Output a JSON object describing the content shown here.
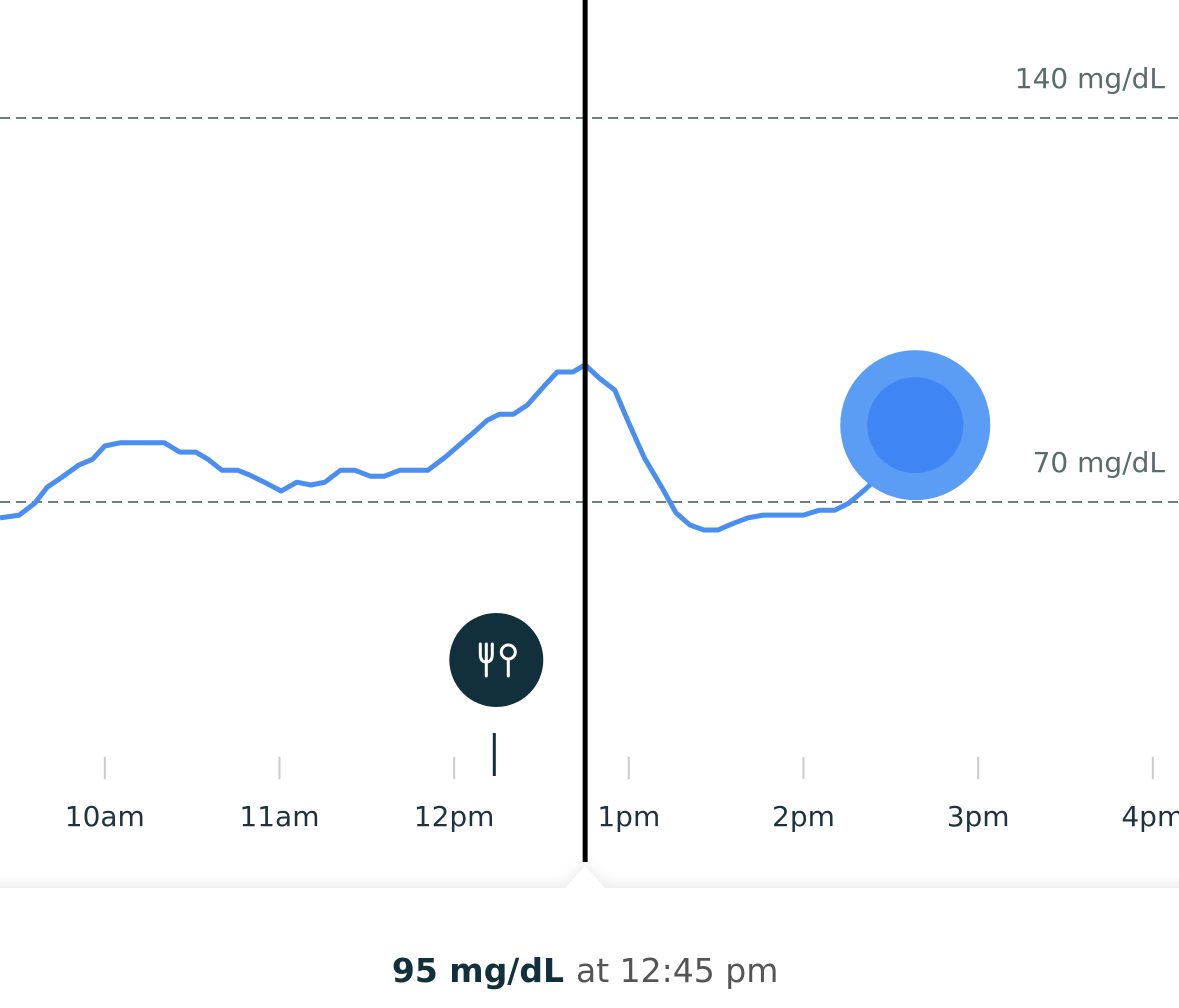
{
  "chart_data": {
    "type": "line",
    "x": [
      9.4,
      9.51,
      9.6,
      9.67,
      9.75,
      9.85,
      9.93,
      10.0,
      10.09,
      10.34,
      10.43,
      10.52,
      10.59,
      10.67,
      10.76,
      10.83,
      10.92,
      11.01,
      11.1,
      11.18,
      11.26,
      11.35,
      11.43,
      11.52,
      11.6,
      11.69,
      11.85,
      11.95,
      12.03,
      12.12,
      12.19,
      12.26,
      12.34,
      12.42,
      12.52,
      12.59,
      12.68,
      12.75,
      12.83,
      12.92,
      13.0,
      13.09,
      13.19,
      13.27,
      13.35,
      13.43,
      13.51,
      13.59,
      13.68,
      13.77,
      14.0,
      14.09,
      14.18,
      14.26,
      14.35,
      14.44,
      14.55,
      14.64
    ],
    "series": [
      {
        "color": "#4a8ef0",
        "values": [
          67.1,
          67.6,
          69.8,
          72.7,
          74.4,
          76.7,
          77.8,
          80.2,
          80.8,
          80.8,
          79.1,
          79.1,
          77.8,
          75.8,
          75.8,
          74.9,
          73.5,
          72.0,
          73.6,
          73.1,
          73.6,
          75.8,
          75.8,
          74.7,
          74.7,
          75.8,
          75.8,
          78.2,
          80.4,
          82.9,
          84.9,
          86.0,
          86.0,
          87.7,
          91.3,
          93.7,
          93.7,
          95,
          92.6,
          90.4,
          84.4,
          78.0,
          72.6,
          68.0,
          65.8,
          64.9,
          64.9,
          66.0,
          67.1,
          67.6,
          67.6,
          68.5,
          68.5,
          69.8,
          72.2,
          74.9,
          77.7,
          84.0
        ]
      }
    ],
    "xlim": [
      9.4,
      16.15
    ],
    "xticks": [
      {
        "value": 10,
        "label": "10am"
      },
      {
        "value": 11,
        "label": "11am"
      },
      {
        "value": 12,
        "label": "12pm"
      },
      {
        "value": 13,
        "label": "1pm"
      },
      {
        "value": 14,
        "label": "2pm"
      },
      {
        "value": 15,
        "label": "3pm"
      },
      {
        "value": 16,
        "label": "4pm"
      }
    ],
    "ylim": [
      0,
      161.5
    ],
    "yticks": [
      {
        "value": 140,
        "label": "140 mg/dL"
      },
      {
        "value": 70,
        "label": "70 mg/dL"
      }
    ],
    "grid": "dashed",
    "meal_time": 12.23,
    "cursor": {
      "x": 12.75,
      "value_label": "95 mg/dL",
      "time_label": "at 12:45 pm"
    }
  }
}
